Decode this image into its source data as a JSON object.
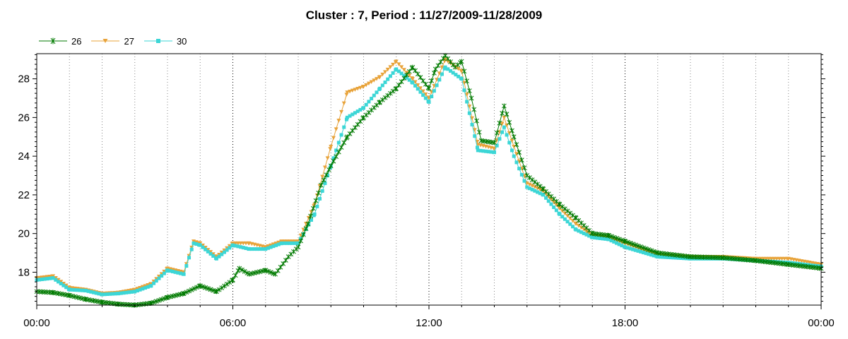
{
  "chart_data": {
    "type": "line",
    "title": "Cluster : 7, Period : 11/27/2009-11/28/2009",
    "xlabel": "",
    "ylabel": "",
    "x_tick_labels": [
      "00:00",
      "06:00",
      "12:00",
      "18:00",
      "00:00"
    ],
    "x_range_hours": [
      0,
      24
    ],
    "y_ticks": [
      18,
      20,
      22,
      24,
      26,
      28
    ],
    "ylim": [
      16.3,
      29.3
    ],
    "grid": "vertical dotted at 3-hour intervals",
    "legend_position": "top-left",
    "series": [
      {
        "name": "26",
        "color": "#007a00",
        "marker": "star",
        "points": [
          [
            0,
            17.0
          ],
          [
            0.5,
            16.95
          ],
          [
            1.0,
            16.8
          ],
          [
            1.5,
            16.6
          ],
          [
            2.0,
            16.45
          ],
          [
            2.5,
            16.35
          ],
          [
            3.0,
            16.3
          ],
          [
            3.5,
            16.4
          ],
          [
            4.0,
            16.7
          ],
          [
            4.5,
            16.9
          ],
          [
            5.0,
            17.3
          ],
          [
            5.5,
            17.0
          ],
          [
            6.0,
            17.6
          ],
          [
            6.2,
            18.2
          ],
          [
            6.5,
            17.9
          ],
          [
            7.0,
            18.1
          ],
          [
            7.3,
            17.9
          ],
          [
            7.7,
            18.8
          ],
          [
            8.0,
            19.3
          ],
          [
            8.3,
            20.5
          ],
          [
            8.7,
            22.5
          ],
          [
            9.0,
            23.5
          ],
          [
            9.5,
            25.0
          ],
          [
            10.0,
            26.0
          ],
          [
            10.5,
            26.8
          ],
          [
            11.0,
            27.5
          ],
          [
            11.5,
            28.6
          ],
          [
            12.0,
            27.5
          ],
          [
            12.2,
            28.5
          ],
          [
            12.5,
            29.2
          ],
          [
            12.8,
            28.6
          ],
          [
            13.0,
            28.9
          ],
          [
            13.3,
            27.0
          ],
          [
            13.6,
            24.8
          ],
          [
            14.0,
            24.7
          ],
          [
            14.3,
            26.6
          ],
          [
            14.6,
            25.0
          ],
          [
            15.0,
            23.0
          ],
          [
            15.5,
            22.3
          ],
          [
            16.0,
            21.5
          ],
          [
            16.5,
            20.8
          ],
          [
            17.0,
            20.0
          ],
          [
            17.5,
            19.9
          ],
          [
            18.0,
            19.6
          ],
          [
            19.0,
            19.0
          ],
          [
            20.0,
            18.8
          ],
          [
            21.0,
            18.75
          ],
          [
            22.0,
            18.6
          ],
          [
            23.0,
            18.4
          ],
          [
            24.0,
            18.2
          ]
        ]
      },
      {
        "name": "27",
        "color": "#e8a33a",
        "marker": "triangle-down",
        "points": [
          [
            0,
            17.7
          ],
          [
            0.5,
            17.8
          ],
          [
            1.0,
            17.2
          ],
          [
            1.5,
            17.1
          ],
          [
            2.0,
            16.9
          ],
          [
            2.5,
            16.95
          ],
          [
            3.0,
            17.1
          ],
          [
            3.5,
            17.4
          ],
          [
            4.0,
            18.2
          ],
          [
            4.5,
            18.0
          ],
          [
            4.8,
            19.6
          ],
          [
            5.0,
            19.5
          ],
          [
            5.5,
            18.8
          ],
          [
            6.0,
            19.5
          ],
          [
            6.5,
            19.5
          ],
          [
            7.0,
            19.3
          ],
          [
            7.5,
            19.6
          ],
          [
            8.0,
            19.6
          ],
          [
            8.5,
            21.5
          ],
          [
            9.0,
            24.5
          ],
          [
            9.5,
            27.3
          ],
          [
            10.0,
            27.6
          ],
          [
            10.5,
            28.1
          ],
          [
            11.0,
            28.9
          ],
          [
            11.5,
            28.0
          ],
          [
            12.0,
            27.0
          ],
          [
            12.5,
            29.0
          ],
          [
            13.0,
            28.4
          ],
          [
            13.5,
            24.6
          ],
          [
            14.0,
            24.4
          ],
          [
            14.3,
            26.0
          ],
          [
            14.6,
            24.5
          ],
          [
            15.0,
            22.6
          ],
          [
            15.5,
            22.2
          ],
          [
            16.0,
            21.3
          ],
          [
            16.5,
            20.5
          ],
          [
            17.0,
            19.9
          ],
          [
            17.5,
            19.8
          ],
          [
            18.0,
            19.5
          ],
          [
            19.0,
            18.9
          ],
          [
            20.0,
            18.8
          ],
          [
            21.0,
            18.8
          ],
          [
            22.0,
            18.7
          ],
          [
            23.0,
            18.7
          ],
          [
            24.0,
            18.4
          ]
        ]
      },
      {
        "name": "30",
        "color": "#3cd6d6",
        "marker": "square",
        "points": [
          [
            0,
            17.6
          ],
          [
            0.5,
            17.7
          ],
          [
            1.0,
            17.1
          ],
          [
            1.5,
            17.05
          ],
          [
            2.0,
            16.85
          ],
          [
            2.5,
            16.9
          ],
          [
            3.0,
            17.0
          ],
          [
            3.5,
            17.3
          ],
          [
            4.0,
            18.1
          ],
          [
            4.5,
            17.9
          ],
          [
            4.8,
            19.5
          ],
          [
            5.0,
            19.4
          ],
          [
            5.5,
            18.7
          ],
          [
            6.0,
            19.4
          ],
          [
            6.5,
            19.2
          ],
          [
            7.0,
            19.2
          ],
          [
            7.5,
            19.5
          ],
          [
            8.0,
            19.5
          ],
          [
            8.5,
            21.0
          ],
          [
            9.0,
            23.5
          ],
          [
            9.5,
            26.0
          ],
          [
            10.0,
            26.5
          ],
          [
            10.5,
            27.5
          ],
          [
            11.0,
            28.5
          ],
          [
            11.5,
            27.8
          ],
          [
            12.0,
            26.8
          ],
          [
            12.5,
            28.6
          ],
          [
            13.0,
            28.0
          ],
          [
            13.5,
            24.3
          ],
          [
            14.0,
            24.2
          ],
          [
            14.3,
            25.5
          ],
          [
            14.6,
            24.0
          ],
          [
            15.0,
            22.4
          ],
          [
            15.5,
            22.0
          ],
          [
            16.0,
            21.0
          ],
          [
            16.5,
            20.2
          ],
          [
            17.0,
            19.8
          ],
          [
            17.5,
            19.7
          ],
          [
            18.0,
            19.3
          ],
          [
            19.0,
            18.8
          ],
          [
            20.0,
            18.7
          ],
          [
            21.0,
            18.7
          ],
          [
            22.0,
            18.6
          ],
          [
            23.0,
            18.5
          ],
          [
            24.0,
            18.3
          ]
        ]
      }
    ]
  }
}
